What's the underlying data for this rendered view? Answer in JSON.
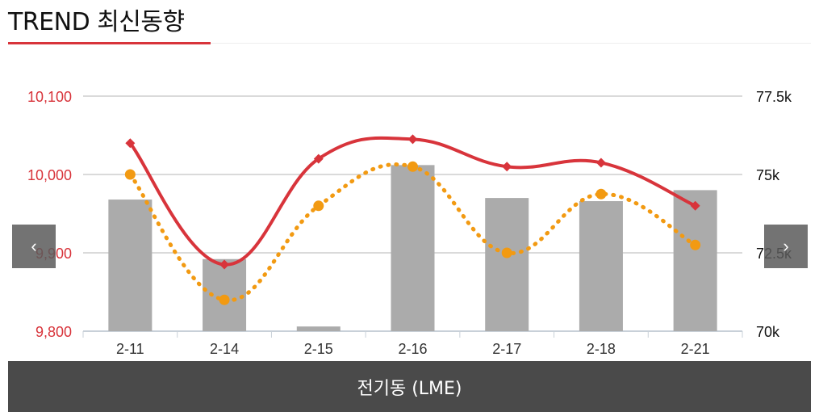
{
  "header": {
    "title": "TREND 최신동향"
  },
  "footer": {
    "label": "전기동 (LME)"
  },
  "nav": {
    "prev_icon": "chevron-left-icon",
    "next_icon": "chevron-right-icon",
    "prev_glyph": "‹",
    "next_glyph": "›"
  },
  "chart_data": {
    "type": "bar+line",
    "categories": [
      "2-11",
      "2-14",
      "2-15",
      "2-16",
      "2-17",
      "2-18",
      "2-21"
    ],
    "y_left": {
      "ticks": [
        "10,100",
        "10,000",
        "9,900",
        "9,800"
      ],
      "range": [
        9800,
        10100
      ],
      "color": "#d8343b"
    },
    "y_right": {
      "ticks": [
        "77.5k",
        "75k",
        "72.5k",
        "70k"
      ],
      "range": [
        70000,
        77500
      ],
      "color": "#111111"
    },
    "grid": true,
    "bars": {
      "axis": "right",
      "color": "#ababab",
      "values": [
        74200,
        72300,
        70150,
        75300,
        74250,
        74150,
        74500
      ]
    },
    "series": [
      {
        "axis": "left",
        "style": "solid",
        "color": "#d8343b",
        "marker": "diamond",
        "values": [
          10040,
          9885,
          10020,
          10045,
          10010,
          10015,
          9960
        ]
      },
      {
        "axis": "left",
        "style": "dotted",
        "color": "#f29a12",
        "marker": "circle",
        "values": [
          10000,
          9840,
          9960,
          10010,
          9900,
          9975,
          9910
        ]
      }
    ]
  }
}
